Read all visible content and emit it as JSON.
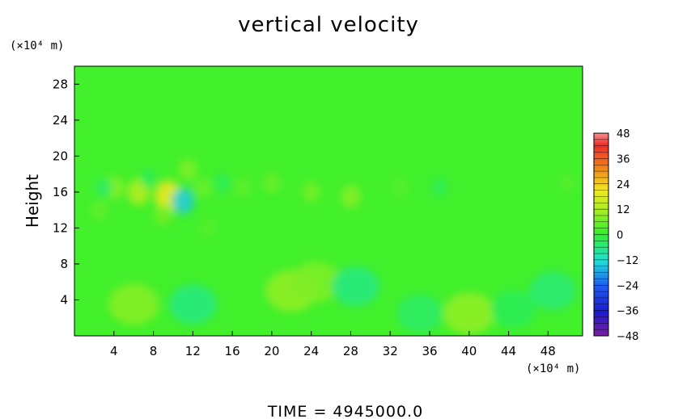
{
  "chart_data": {
    "type": "heatmap",
    "title": "vertical velocity",
    "ylabel": "Height",
    "xlabel": "",
    "x_unit": "(×10⁴ m)",
    "y_unit": "(×10⁴ m)",
    "xlim": [
      0,
      51.5
    ],
    "ylim": [
      0,
      30
    ],
    "x_ticks": [
      4,
      8,
      12,
      16,
      20,
      24,
      28,
      32,
      36,
      40,
      44,
      48
    ],
    "y_ticks": [
      4,
      8,
      12,
      16,
      20,
      24,
      28
    ],
    "colorbar": {
      "min": -48,
      "max": 48,
      "ticks": [
        48,
        36,
        24,
        12,
        0,
        -12,
        -24,
        -36,
        -48
      ],
      "tick_labels": [
        "48",
        "36",
        "24",
        "12",
        "0",
        "−12",
        "−24",
        "−36",
        "−48"
      ]
    },
    "background_value": 2,
    "features": [
      {
        "x": 4,
        "y": 16.5,
        "value": 9
      },
      {
        "x": 6.5,
        "y": 16,
        "value": 14
      },
      {
        "x": 9.5,
        "y": 15.5,
        "value": 22
      },
      {
        "x": 11,
        "y": 15,
        "value": -14
      },
      {
        "x": 11.5,
        "y": 18.5,
        "value": 8
      },
      {
        "x": 9,
        "y": 13.5,
        "value": 7
      },
      {
        "x": 3,
        "y": 16.5,
        "value": -4
      },
      {
        "x": 7.5,
        "y": 17.5,
        "value": -3
      },
      {
        "x": 13,
        "y": 16.5,
        "value": 6
      },
      {
        "x": 15,
        "y": 17,
        "value": -3
      },
      {
        "x": 17,
        "y": 16.5,
        "value": 5
      },
      {
        "x": 20,
        "y": 17,
        "value": 6
      },
      {
        "x": 24,
        "y": 16,
        "value": 7
      },
      {
        "x": 28,
        "y": 15.5,
        "value": 9
      },
      {
        "x": 33,
        "y": 16.5,
        "value": 4
      },
      {
        "x": 37,
        "y": 16.5,
        "value": -3
      },
      {
        "x": 50,
        "y": 17,
        "value": 4
      },
      {
        "x": 2.5,
        "y": 14,
        "value": 5
      },
      {
        "x": 13.5,
        "y": 12,
        "value": 4
      },
      {
        "x": 6,
        "y": 3.5,
        "value": 9
      },
      {
        "x": 12,
        "y": 3.5,
        "value": -6
      },
      {
        "x": 22,
        "y": 5,
        "value": 10
      },
      {
        "x": 24.5,
        "y": 6,
        "value": 8
      },
      {
        "x": 28.5,
        "y": 5.5,
        "value": -6
      },
      {
        "x": 35,
        "y": 2.5,
        "value": -4
      },
      {
        "x": 40,
        "y": 2.5,
        "value": 10
      },
      {
        "x": 44.5,
        "y": 3,
        "value": -3
      },
      {
        "x": 48.5,
        "y": 5,
        "value": -5
      }
    ]
  },
  "footer": {
    "time_label": "TIME  =  4945000.0"
  }
}
